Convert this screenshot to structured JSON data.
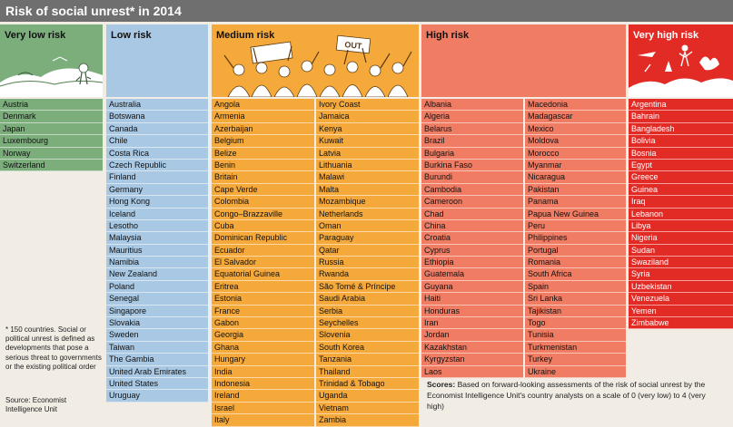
{
  "title": "Risk of social unrest* in 2014",
  "colors": {
    "very_low": "#7cae7c",
    "low": "#a9c8e3",
    "medium": "#f6a93b",
    "high": "#f07c63",
    "very_high": "#e32b26"
  },
  "chart_data": {
    "type": "table",
    "title": "Risk of social unrest* in 2014",
    "categories": [
      {
        "name": "Very low risk",
        "countries": [
          "Austria",
          "Denmark",
          "Japan",
          "Luxembourg",
          "Norway",
          "Switzerland"
        ]
      },
      {
        "name": "Low risk",
        "countries": [
          "Australia",
          "Botswana",
          "Canada",
          "Chile",
          "Costa Rica",
          "Czech Republic",
          "Finland",
          "Germany",
          "Hong Kong",
          "Iceland",
          "Lesotho",
          "Malaysia",
          "Mauritius",
          "Namibia",
          "New Zealand",
          "Poland",
          "Senegal",
          "Singapore",
          "Slovakia",
          "Sweden",
          "Taiwan",
          "The Gambia",
          "United Arab Emirates",
          "United States",
          "Uruguay"
        ]
      },
      {
        "name": "Medium risk",
        "countries": [
          "Angola",
          "Armenia",
          "Azerbaijan",
          "Belgium",
          "Belize",
          "Benin",
          "Britain",
          "Cape Verde",
          "Colombia",
          "Congo–Brazzaville",
          "Cuba",
          "Dominican Republic",
          "Ecuador",
          "El Salvador",
          "Equatorial Guinea",
          "Eritrea",
          "Estonia",
          "France",
          "Gabon",
          "Georgia",
          "Ghana",
          "Hungary",
          "India",
          "Indonesia",
          "Ireland",
          "Israel",
          "Italy",
          "Ivory Coast",
          "Jamaica",
          "Kenya",
          "Kuwait",
          "Latvia",
          "Lithuania",
          "Malawi",
          "Malta",
          "Mozambique",
          "Netherlands",
          "Oman",
          "Paraguay",
          "Qatar",
          "Russia",
          "Rwanda",
          "São Tomé & Príncipe",
          "Saudi Arabia",
          "Serbia",
          "Seychelles",
          "Slovenia",
          "South Korea",
          "Tanzania",
          "Thailand",
          "Trinidad & Tobago",
          "Uganda",
          "Vietnam",
          "Zambia"
        ]
      },
      {
        "name": "High risk",
        "countries": [
          "Albania",
          "Algeria",
          "Belarus",
          "Brazil",
          "Bulgaria",
          "Burkina Faso",
          "Burundi",
          "Cambodia",
          "Cameroon",
          "Chad",
          "China",
          "Croatia",
          "Cyprus",
          "Ethiopia",
          "Guatemala",
          "Guyana",
          "Haiti",
          "Honduras",
          "Iran",
          "Jordan",
          "Kazakhstan",
          "Kyrgyzstan",
          "Laos",
          "Macedonia",
          "Madagascar",
          "Mexico",
          "Moldova",
          "Morocco",
          "Myanmar",
          "Nicaragua",
          "Pakistan",
          "Panama",
          "Papua New Guinea",
          "Peru",
          "Philippines",
          "Portugal",
          "Romania",
          "South Africa",
          "Spain",
          "Sri Lanka",
          "Tajikistan",
          "Togo",
          "Tunisia",
          "Turkmenistan",
          "Turkey",
          "Ukraine"
        ]
      },
      {
        "name": "Very high risk",
        "countries": [
          "Argentina",
          "Bahrain",
          "Bangladesh",
          "Bolivia",
          "Bosnia",
          "Egypt",
          "Greece",
          "Guinea",
          "Iraq",
          "Lebanon",
          "Libya",
          "Nigeria",
          "Sudan",
          "Swaziland",
          "Syria",
          "Uzbekistan",
          "Venezuela",
          "Yemen",
          "Zimbabwe"
        ]
      }
    ]
  },
  "illustration": {
    "banner_text": "OUT"
  },
  "footnote": "* 150 countries. Social or political unrest is defined as developments that pose a serious threat to governments or the existing political order",
  "source": "Source: Economist Intelligence Unit",
  "scores_label": "Scores:",
  "scores_text": "Based on forward-looking assessments of the risk of social unrest by the Economist Intelligence Unit's country analysts on a scale of 0 (very low) to 4 (very high)"
}
